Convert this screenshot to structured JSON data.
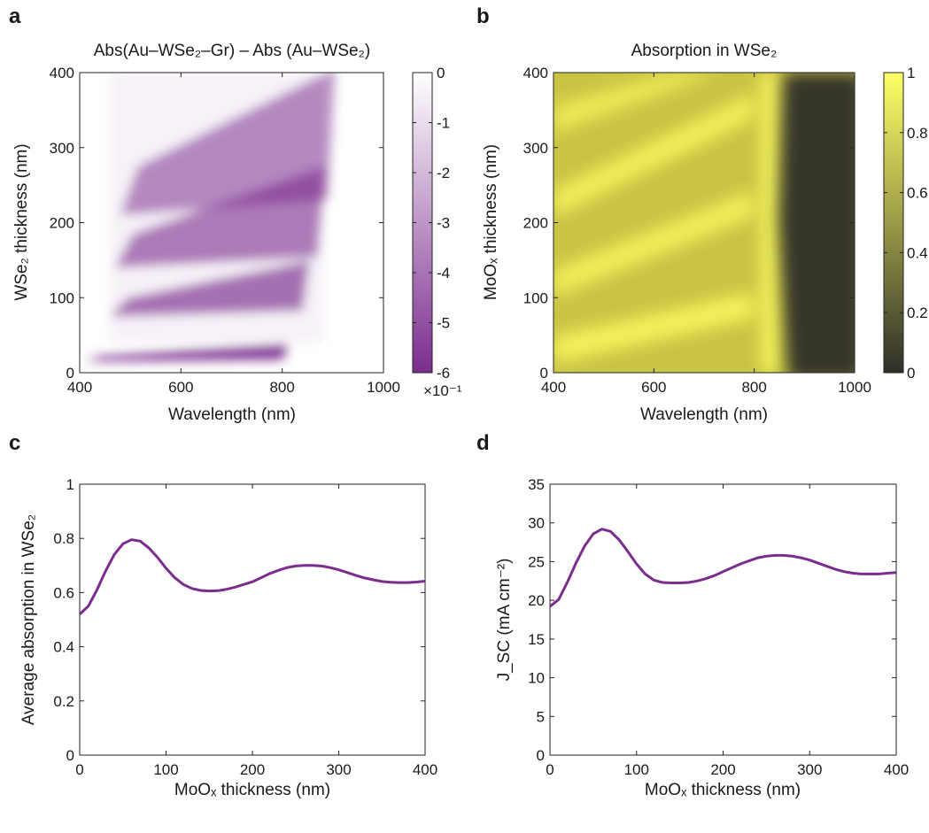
{
  "colors": {
    "purple_line": "#7B2D8E",
    "heat_a_low": "#7B2D8E",
    "heat_a_high": "#FFFFFF",
    "heat_b_low": "#2E2E28",
    "heat_b_high": "#FFFF66"
  },
  "chart_data": [
    {
      "panel": "a",
      "type": "heatmap",
      "title": "Abs(Au–WSe₂–Gr) – Abs (Au–WSe₂)",
      "xlabel": "Wavelength (nm)",
      "ylabel": "WSe₂ thickness (nm)",
      "xlim": [
        400,
        1000
      ],
      "ylim": [
        0,
        400
      ],
      "xticks": [
        "400",
        "600",
        "800",
        "1000"
      ],
      "yticks": [
        "0",
        "100",
        "200",
        "300",
        "400"
      ],
      "colorbar": {
        "range": [
          -6,
          0
        ],
        "ticks": [
          "0",
          "-1",
          "-2",
          "-3",
          "-4",
          "-5",
          "-6"
        ],
        "multiplier": "×10⁻¹"
      },
      "bands": [
        {
          "thickness_start": 15,
          "thickness_end": 32,
          "lambda_start": 410,
          "lambda_end": 800,
          "min_value": -6
        },
        {
          "thickness_start": 75,
          "thickness_end": 130,
          "lambda_start": 460,
          "lambda_end": 840,
          "min_value": -3.5
        },
        {
          "thickness_start": 140,
          "thickness_end": 240,
          "lambda_start": 470,
          "lambda_end": 870,
          "min_value": -3
        },
        {
          "thickness_start": 210,
          "thickness_end": 355,
          "lambda_start": 480,
          "lambda_end": 890,
          "min_value": -2.5
        }
      ]
    },
    {
      "panel": "b",
      "type": "heatmap",
      "title": "Absorption in WSe₂",
      "xlabel": "Wavelength (nm)",
      "ylabel": "MoOₓ thickness (nm)",
      "xlim": [
        400,
        1000
      ],
      "ylim": [
        0,
        400
      ],
      "xticks": [
        "400",
        "600",
        "800",
        "1000"
      ],
      "yticks": [
        "0",
        "100",
        "200",
        "300",
        "400"
      ],
      "colorbar": {
        "range": [
          0,
          1
        ],
        "ticks": [
          "1",
          "0.8",
          "0.6",
          "0.4",
          "0.2",
          "0"
        ]
      },
      "absorption_edge_nm": 860
    },
    {
      "panel": "c",
      "type": "line",
      "xlabel": "MoOₓ thickness (nm)",
      "ylabel": "Average absorption in WSe₂",
      "xlim": [
        0,
        400
      ],
      "ylim": [
        0,
        1
      ],
      "xticks": [
        "0",
        "100",
        "200",
        "300",
        "400"
      ],
      "yticks": [
        "0",
        "0.2",
        "0.4",
        "0.6",
        "0.8",
        "1"
      ],
      "x": [
        0,
        10,
        20,
        30,
        40,
        50,
        60,
        70,
        80,
        90,
        100,
        110,
        120,
        130,
        140,
        150,
        160,
        170,
        180,
        190,
        200,
        210,
        220,
        230,
        240,
        250,
        260,
        270,
        280,
        290,
        300,
        310,
        320,
        330,
        340,
        350,
        360,
        370,
        380,
        390,
        400
      ],
      "y": [
        0.52,
        0.55,
        0.61,
        0.68,
        0.74,
        0.78,
        0.795,
        0.79,
        0.765,
        0.73,
        0.69,
        0.655,
        0.63,
        0.615,
        0.608,
        0.606,
        0.607,
        0.612,
        0.62,
        0.63,
        0.64,
        0.655,
        0.67,
        0.682,
        0.692,
        0.698,
        0.7,
        0.7,
        0.698,
        0.692,
        0.684,
        0.674,
        0.663,
        0.654,
        0.647,
        0.641,
        0.638,
        0.637,
        0.637,
        0.639,
        0.642
      ]
    },
    {
      "panel": "d",
      "type": "line",
      "xlabel": "MoOₓ thickness (nm)",
      "ylabel": "J_SC (mA cm⁻²)",
      "xlim": [
        0,
        400
      ],
      "ylim": [
        0,
        35
      ],
      "xticks": [
        "0",
        "100",
        "200",
        "300",
        "400"
      ],
      "yticks": [
        "0",
        "5",
        "10",
        "15",
        "20",
        "25",
        "30",
        "35"
      ],
      "x": [
        0,
        10,
        20,
        30,
        40,
        50,
        60,
        70,
        80,
        90,
        100,
        110,
        120,
        130,
        140,
        150,
        160,
        170,
        180,
        190,
        200,
        210,
        220,
        230,
        240,
        250,
        260,
        270,
        280,
        290,
        300,
        310,
        320,
        330,
        340,
        350,
        360,
        370,
        380,
        390,
        400
      ],
      "y": [
        19.2,
        20.1,
        22.3,
        24.8,
        27.0,
        28.6,
        29.2,
        28.9,
        27.8,
        26.3,
        24.7,
        23.4,
        22.6,
        22.3,
        22.25,
        22.25,
        22.3,
        22.5,
        22.8,
        23.2,
        23.7,
        24.2,
        24.7,
        25.1,
        25.5,
        25.7,
        25.8,
        25.8,
        25.7,
        25.5,
        25.2,
        24.8,
        24.4,
        24.0,
        23.7,
        23.5,
        23.4,
        23.4,
        23.4,
        23.5,
        23.6
      ]
    }
  ]
}
